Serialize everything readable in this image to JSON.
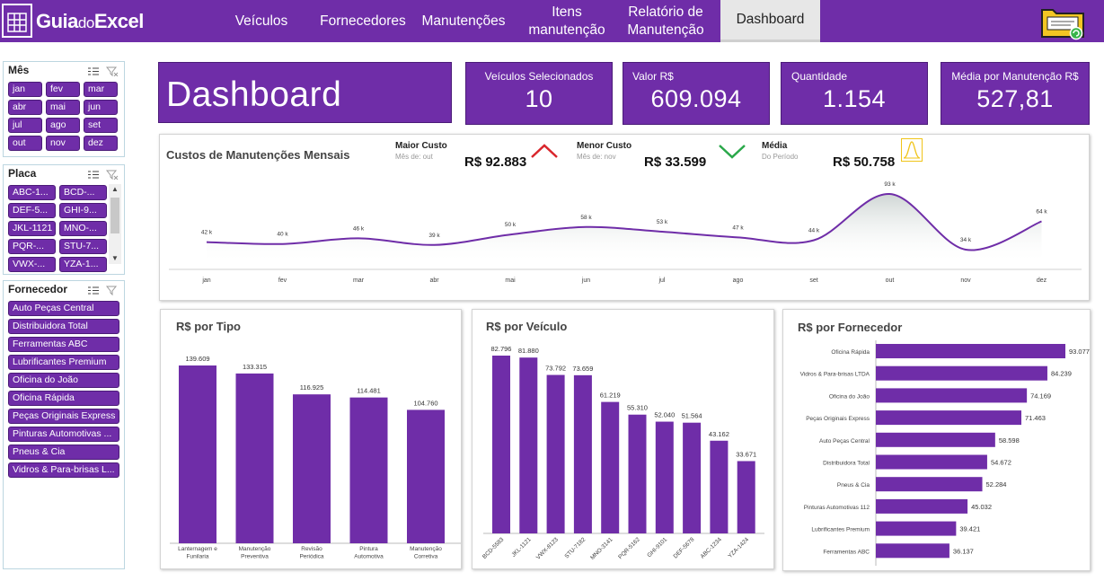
{
  "brand": {
    "logo_main": "Guia",
    "logo_do": "do",
    "logo_end": "Excel"
  },
  "nav": [
    {
      "label": "Veículos"
    },
    {
      "label": "Fornecedores"
    },
    {
      "label": "Manutenções"
    },
    {
      "label": "Itens manutenção"
    },
    {
      "label": "Relatório de Manutenção"
    },
    {
      "label": "Dashboard"
    }
  ],
  "slicers": {
    "mes": {
      "title": "Mês",
      "items": [
        "jan",
        "fev",
        "mar",
        "abr",
        "mai",
        "jun",
        "jul",
        "ago",
        "set",
        "out",
        "nov",
        "dez"
      ]
    },
    "placa": {
      "title": "Placa",
      "items": [
        "ABC-1...",
        "BCD-...",
        "DEF-5...",
        "GHI-9...",
        "JKL-1121",
        "MNO-...",
        "PQR-...",
        "STU-7...",
        "VWX-...",
        "YZA-1..."
      ]
    },
    "fornecedor": {
      "title": "Fornecedor",
      "items": [
        "Auto Peças Central",
        "Distribuidora Total",
        "Ferramentas ABC",
        "Lubrificantes Premium",
        "Oficina do João",
        "Oficina Rápida",
        "Peças Originais Express",
        "Pinturas Automotivas ...",
        "Pneus & Cia",
        "Vidros & Para-brisas L..."
      ]
    }
  },
  "title": "Dashboard",
  "kpis": [
    {
      "label": "Veículos Selecionados",
      "value": "10"
    },
    {
      "label": "Valor R$",
      "value": "609.094"
    },
    {
      "label": "Quantidade",
      "value": "1.154"
    },
    {
      "label": "Média por Manutenção R$",
      "value": "527,81"
    }
  ],
  "monthly": {
    "title": "Custos de Manutenções Mensais",
    "maior": {
      "label": "Maior Custo",
      "sub": "Mês de: out",
      "value": "R$ 92.883"
    },
    "menor": {
      "label": "Menor Custo",
      "sub": "Mês de: nov",
      "value": "R$ 33.599"
    },
    "media": {
      "label": "Média",
      "sub": "Do Período",
      "value": "R$ 50.758"
    }
  },
  "colors": {
    "purple": "#6f2da8",
    "up": "#d9262c",
    "down": "#2aa84a",
    "media": "#f0c419"
  },
  "chart_data": [
    {
      "type": "area",
      "title": "Custos de Manutenções Mensais",
      "categories": [
        "jan",
        "fev",
        "mar",
        "abr",
        "mai",
        "jun",
        "jul",
        "ago",
        "set",
        "out",
        "nov",
        "dez"
      ],
      "values": [
        42,
        40,
        46,
        39,
        50,
        58,
        53,
        47,
        44,
        93,
        34,
        64
      ],
      "labels": [
        "42 k",
        "40 k",
        "46 k",
        "39 k",
        "50 k",
        "58 k",
        "53 k",
        "47 k",
        "44 k",
        "93 k",
        "34 k",
        "64 k"
      ]
    },
    {
      "type": "bar",
      "title": "R$ por Tipo",
      "categories": [
        "Lanternagem e Funilaria",
        "Manutenção Preventiva",
        "Revisão Periódica",
        "Pintura Automotiva",
        "Manutenção Corretiva"
      ],
      "values": [
        139609,
        133315,
        116925,
        114481,
        104760
      ],
      "labels": [
        "139.609",
        "133.315",
        "116.925",
        "114.481",
        "104.760"
      ]
    },
    {
      "type": "bar",
      "title": "R$ por Veículo",
      "categories": [
        "BCD-5583",
        "JKL-1121",
        "VWX-8123",
        "STU-7182",
        "MNO-3141",
        "PQR-5162",
        "GHI-9101",
        "DEF-5678",
        "ABC-1234",
        "YZA-1424"
      ],
      "values": [
        82796,
        81880,
        73792,
        73659,
        61219,
        55310,
        52040,
        51564,
        43162,
        33671
      ],
      "labels": [
        "82.796",
        "81.880",
        "73.792",
        "73.659",
        "61.219",
        "55.310",
        "52.040",
        "51.564",
        "43.162",
        "33.671"
      ]
    },
    {
      "type": "bar",
      "title": "R$ por Fornecedor",
      "orientation": "horizontal",
      "categories": [
        "Oficina Rápida",
        "Vidros & Para-brisas LTDA",
        "Oficina do João",
        "Peças Originais Express",
        "Auto Peças Central",
        "Distribuidora Total",
        "Pneus & Cia",
        "Pinturas Automotivas 112",
        "Lubrificantes Premium",
        "Ferramentas ABC"
      ],
      "values": [
        93077,
        84239,
        74169,
        71463,
        58598,
        54672,
        52284,
        45032,
        39421,
        36137
      ],
      "labels": [
        "93.077",
        "84.239",
        "74.169",
        "71.463",
        "58.598",
        "54.672",
        "52.284",
        "45.032",
        "39.421",
        "36.137"
      ]
    }
  ]
}
